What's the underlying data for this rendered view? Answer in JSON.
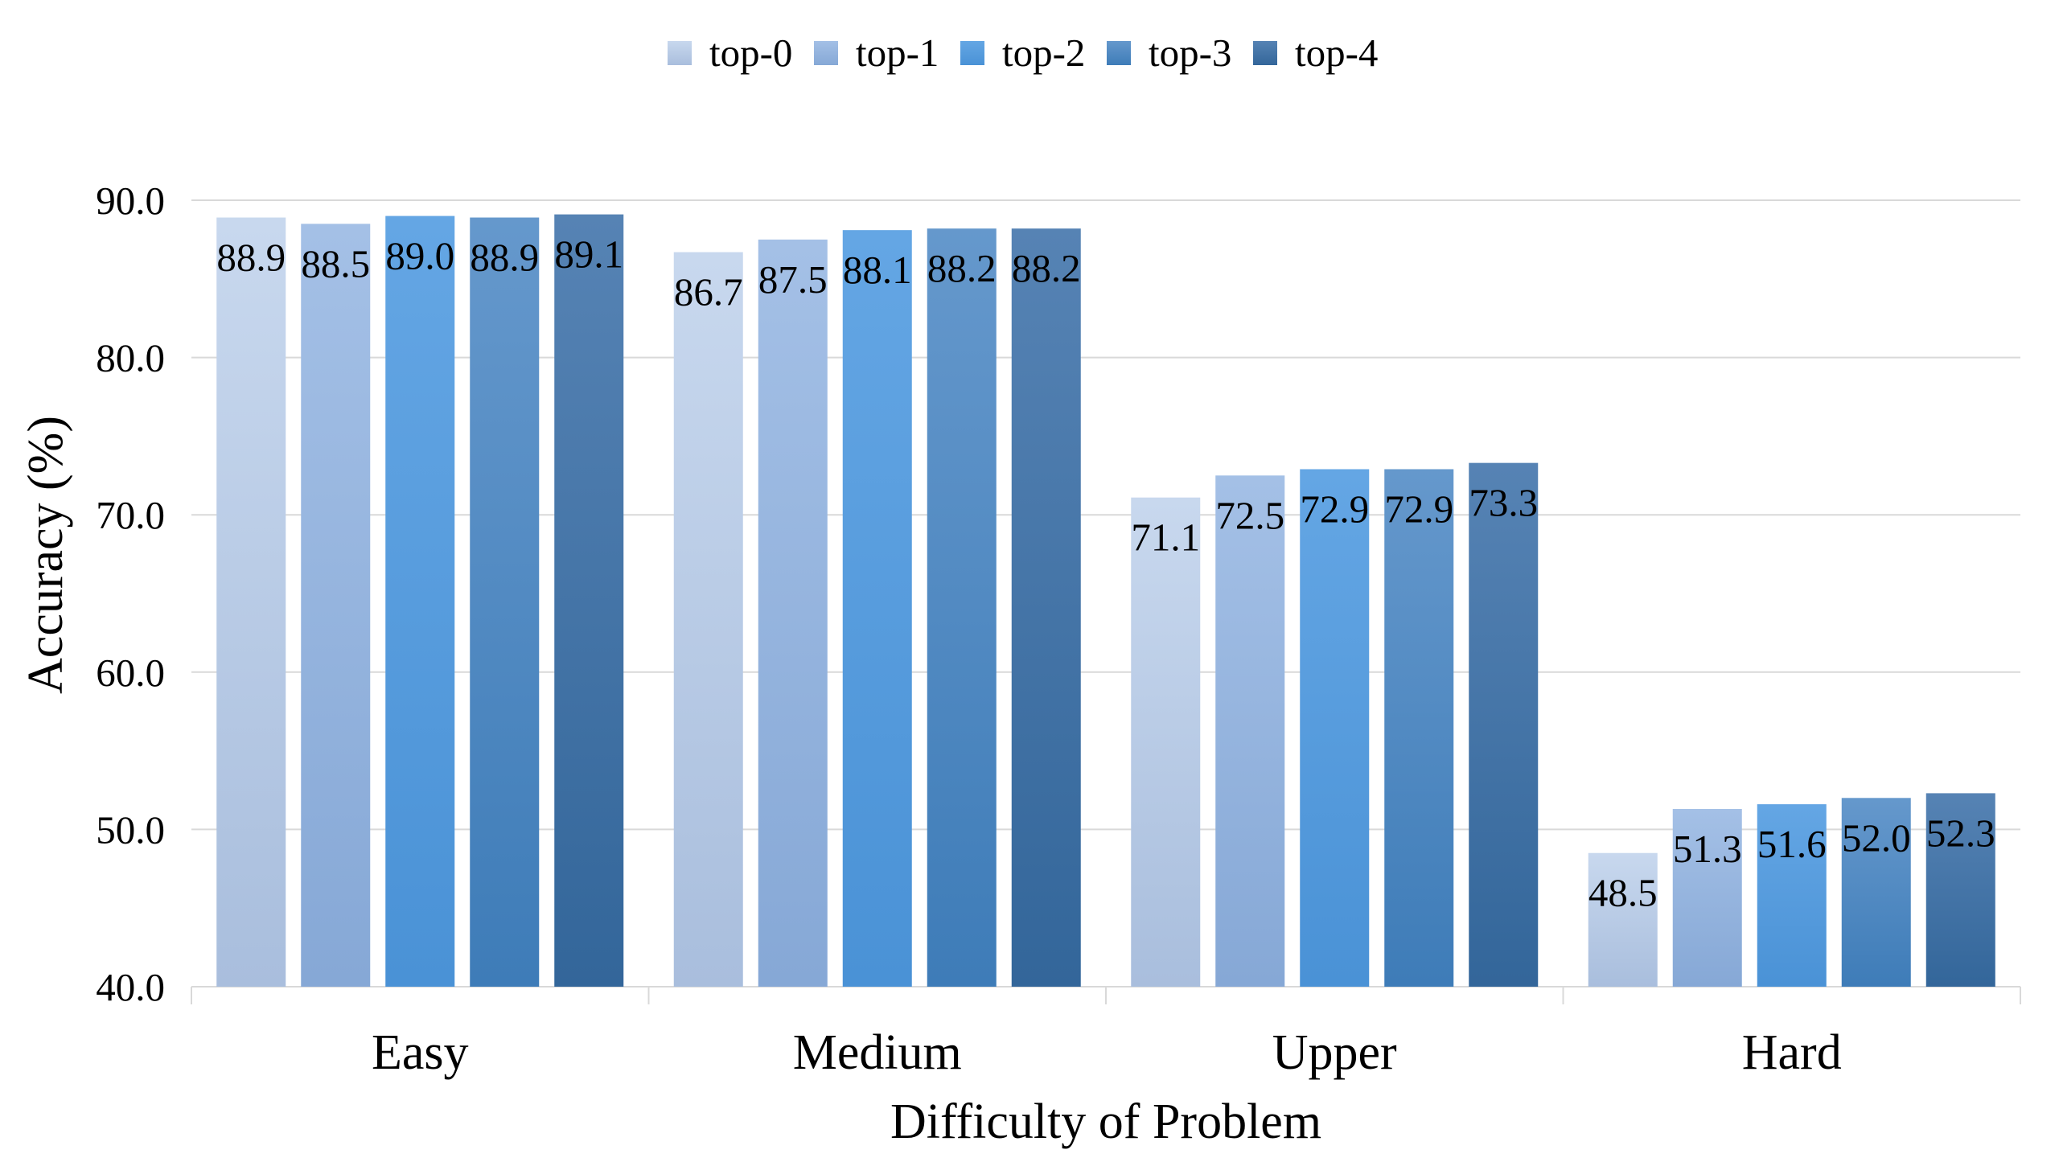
{
  "chart_data": {
    "type": "bar",
    "title": "",
    "xlabel": "Difficulty of Problem",
    "ylabel": "Accuracy (%)",
    "ylim": [
      40,
      90
    ],
    "yticks": [
      "40.0",
      "50.0",
      "60.0",
      "70.0",
      "80.0",
      "90.0"
    ],
    "grid": true,
    "legend_position": "top-center",
    "categories": [
      "Easy",
      "Medium",
      "Upper",
      "Hard"
    ],
    "series": [
      {
        "name": "top-0",
        "color_top": "#c8d8ee",
        "color_bottom": "#a9bedd",
        "values": [
          88.9,
          86.7,
          71.1,
          48.5
        ],
        "labels": [
          "88.9",
          "86.7",
          "71.1",
          "48.5"
        ]
      },
      {
        "name": "top-1",
        "color_top": "#a4c0e6",
        "color_bottom": "#86a8d6",
        "values": [
          88.5,
          87.5,
          72.5,
          51.3
        ],
        "labels": [
          "88.5",
          "87.5",
          "72.5",
          "51.3"
        ]
      },
      {
        "name": "top-2",
        "color_top": "#64a6e4",
        "color_bottom": "#4a92d6",
        "values": [
          89.0,
          88.1,
          72.9,
          51.6
        ],
        "labels": [
          "89.0",
          "88.1",
          "72.9",
          "51.6"
        ]
      },
      {
        "name": "top-3",
        "color_top": "#6598cc",
        "color_bottom": "#3e7cb8",
        "values": [
          88.9,
          88.2,
          72.9,
          52.0
        ],
        "labels": [
          "88.9",
          "88.2",
          "72.9",
          "52.0"
        ]
      },
      {
        "name": "top-4",
        "color_top": "#5683b4",
        "color_bottom": "#33669a",
        "values": [
          89.1,
          88.2,
          73.3,
          52.3
        ],
        "labels": [
          "89.1",
          "88.2",
          "73.3",
          "52.3"
        ]
      }
    ]
  }
}
